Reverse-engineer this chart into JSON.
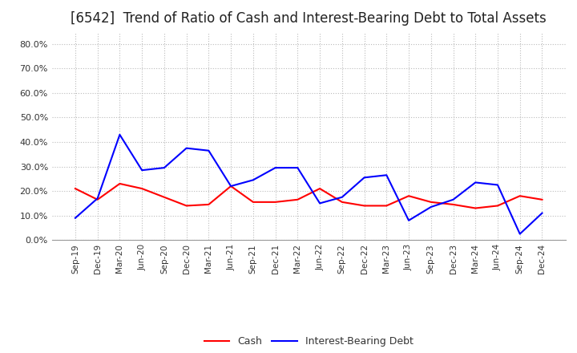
{
  "title": "[6542]  Trend of Ratio of Cash and Interest-Bearing Debt to Total Assets",
  "x_labels": [
    "Sep-19",
    "Dec-19",
    "Mar-20",
    "Jun-20",
    "Sep-20",
    "Dec-20",
    "Mar-21",
    "Jun-21",
    "Sep-21",
    "Dec-21",
    "Mar-22",
    "Jun-22",
    "Sep-22",
    "Dec-22",
    "Mar-23",
    "Jun-23",
    "Sep-23",
    "Dec-23",
    "Mar-24",
    "Jun-24",
    "Sep-24",
    "Dec-24"
  ],
  "cash": [
    0.21,
    0.165,
    0.23,
    0.21,
    0.175,
    0.14,
    0.145,
    0.22,
    0.155,
    0.155,
    0.165,
    0.21,
    0.155,
    0.14,
    0.14,
    0.18,
    0.155,
    0.145,
    0.13,
    0.14,
    0.18,
    0.165
  ],
  "ibd": [
    0.09,
    0.17,
    0.43,
    0.285,
    0.295,
    0.375,
    0.365,
    0.22,
    0.245,
    0.295,
    0.295,
    0.15,
    0.175,
    0.255,
    0.265,
    0.08,
    0.135,
    0.165,
    0.235,
    0.225,
    0.025,
    0.11
  ],
  "cash_color": "#ff0000",
  "ibd_color": "#0000ff",
  "ylim": [
    0.0,
    0.85
  ],
  "yticks": [
    0.0,
    0.1,
    0.2,
    0.3,
    0.4,
    0.5,
    0.6,
    0.7,
    0.8
  ],
  "background_color": "#ffffff",
  "grid_color": "#bbbbbb",
  "title_fontsize": 12,
  "legend_cash": "Cash",
  "legend_ibd": "Interest-Bearing Debt",
  "line_width": 1.5
}
